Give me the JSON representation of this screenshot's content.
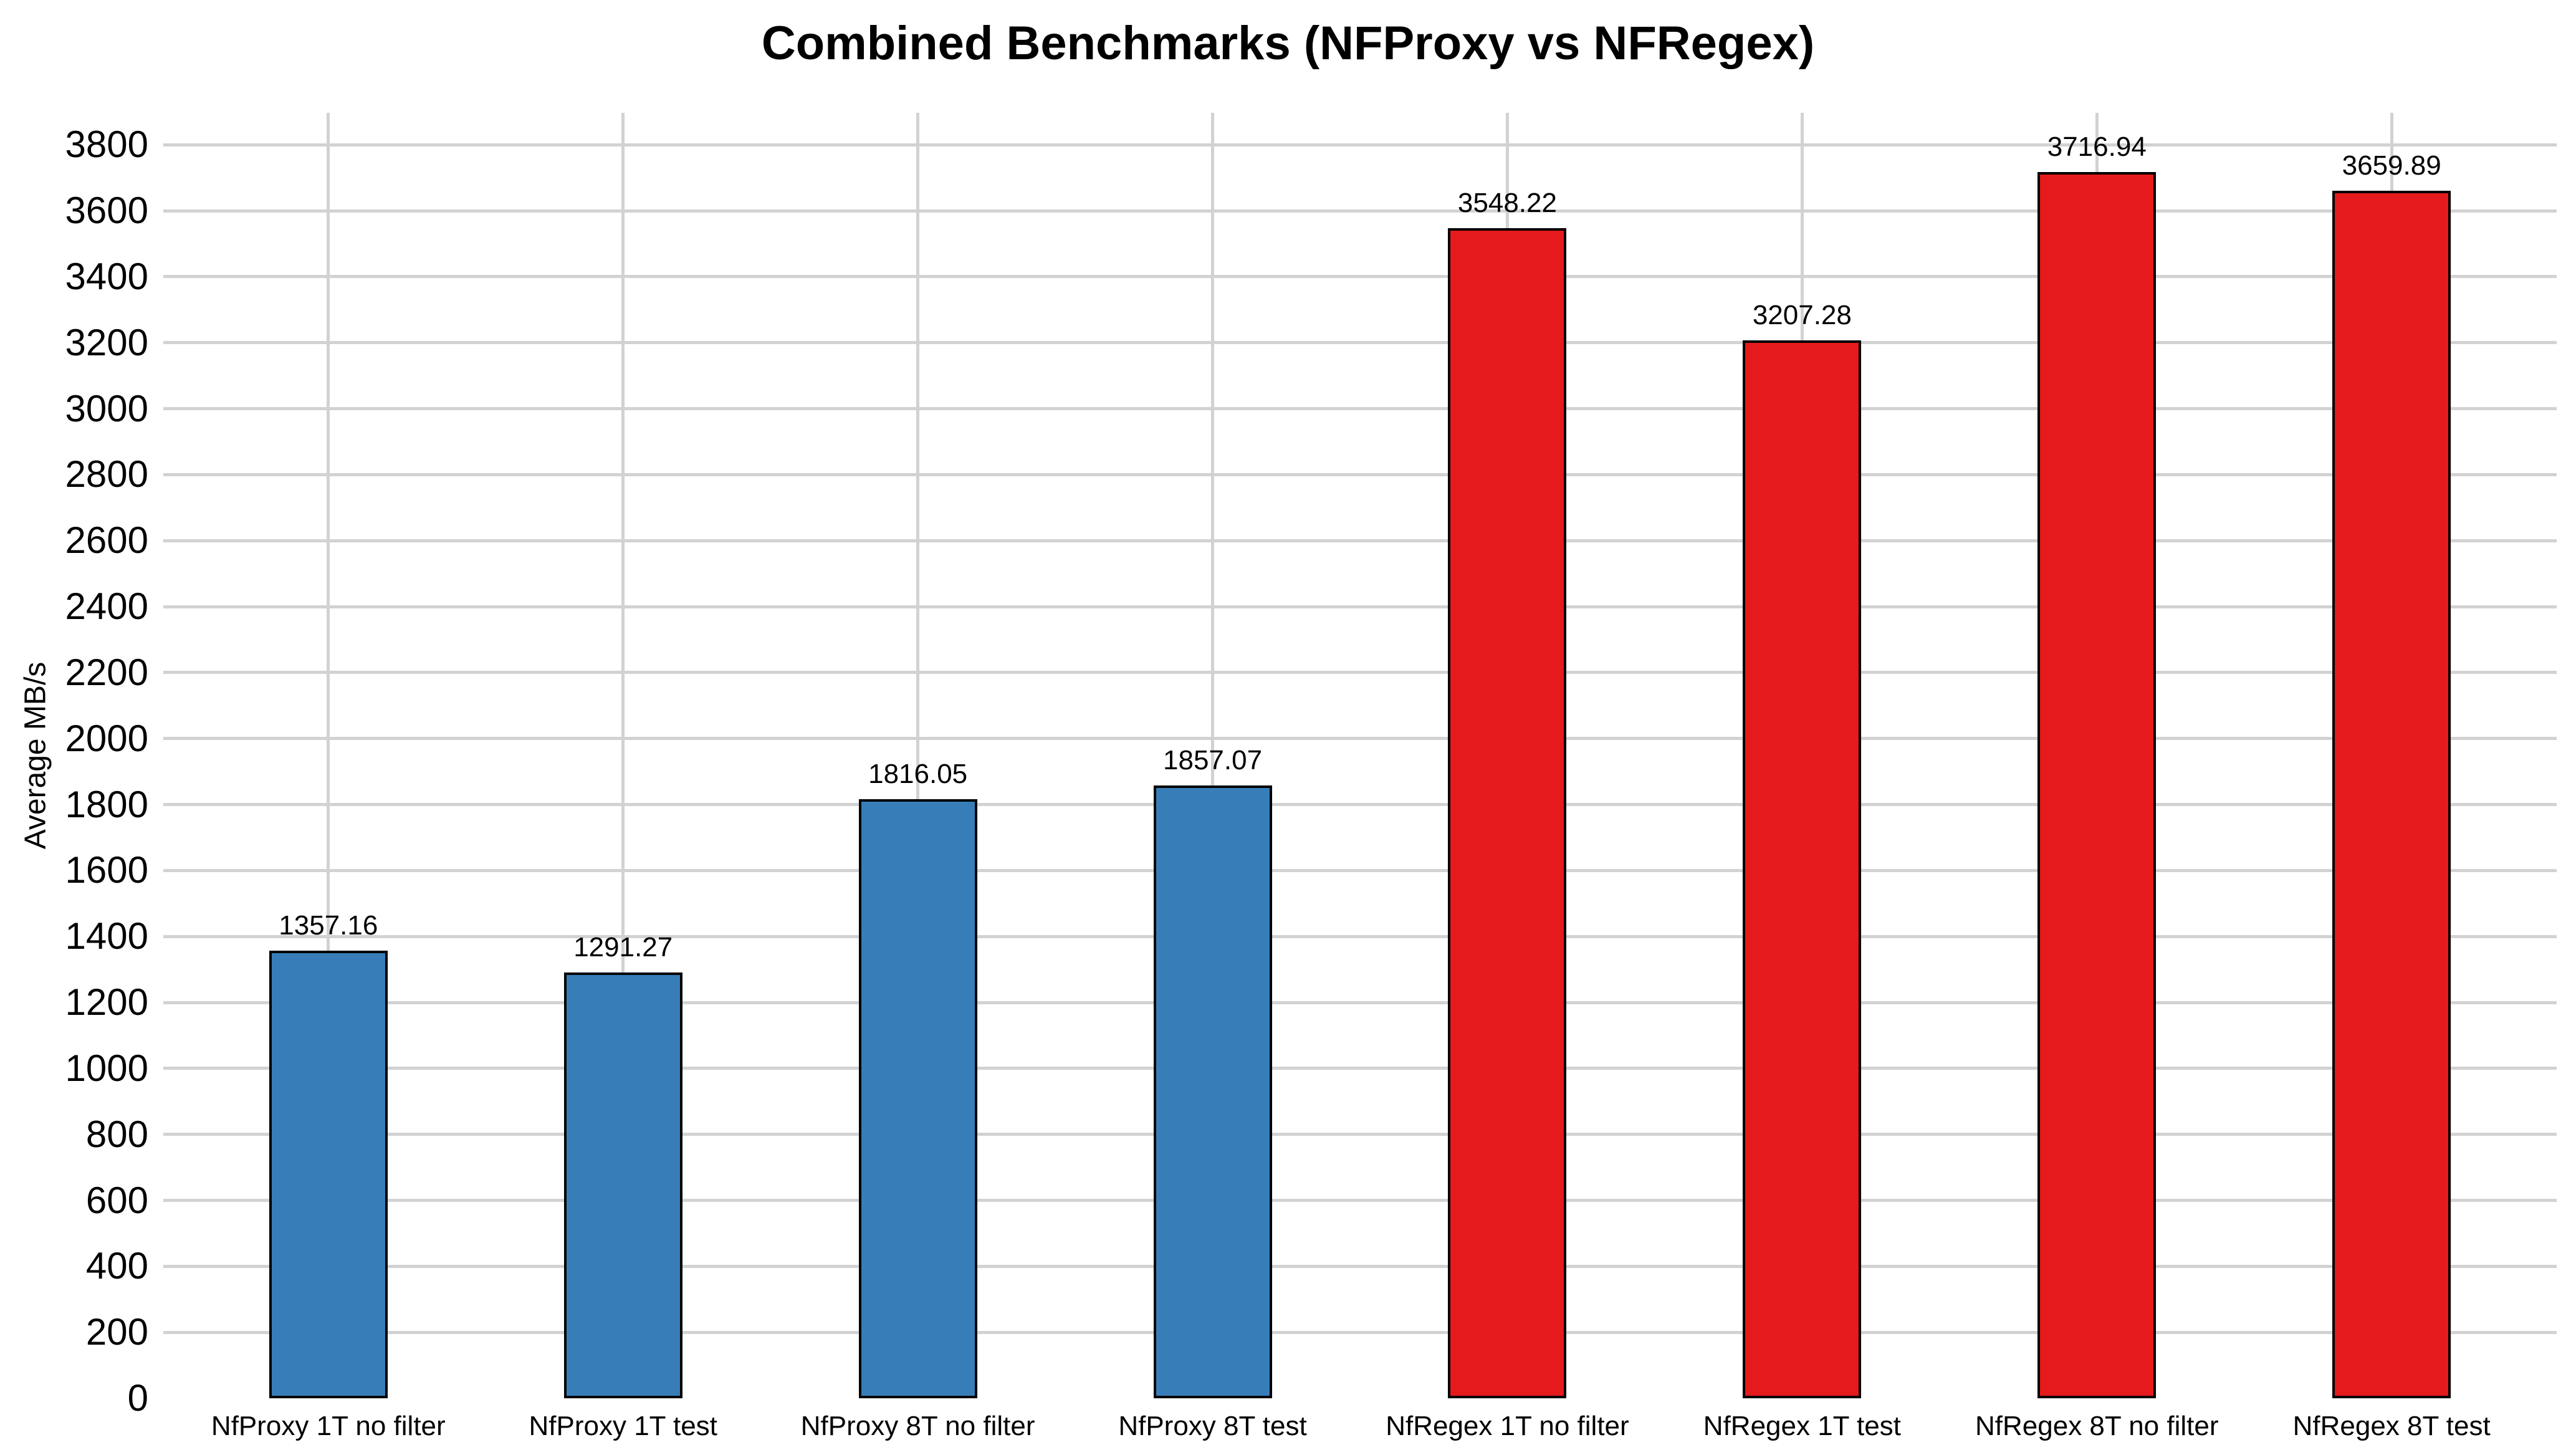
{
  "chart_data": {
    "type": "bar",
    "title": "Combined Benchmarks (NFProxy vs NFRegex)",
    "xlabel": "",
    "ylabel": "Average MB/s",
    "categories": [
      "NfProxy 1T no filter",
      "NfProxy 1T test",
      "NfProxy 8T no filter",
      "NfProxy 8T test",
      "NfRegex 1T no filter",
      "NfRegex 1T test",
      "NfRegex 8T no filter",
      "NfRegex 8T test"
    ],
    "values": [
      1357.16,
      1291.27,
      1816.05,
      1857.07,
      3548.22,
      3207.28,
      3716.94,
      3659.89
    ],
    "value_labels": [
      "1357.16",
      "1291.27",
      "1816.05",
      "1857.07",
      "3548.22",
      "3207.28",
      "3716.94",
      "3659.89"
    ],
    "bar_colors": [
      "#377eb8",
      "#377eb8",
      "#377eb8",
      "#377eb8",
      "#e41a1c",
      "#e41a1c",
      "#e41a1c",
      "#e41a1c"
    ],
    "y_ticks": [
      0,
      200,
      400,
      600,
      800,
      1000,
      1200,
      1400,
      1600,
      1800,
      2000,
      2200,
      2400,
      2600,
      2800,
      3000,
      3200,
      3400,
      3600,
      3800
    ],
    "ylim": [
      0,
      3897
    ],
    "grid": "both",
    "legend_position": "none",
    "series_colors": {
      "nfproxy_blue": "#377eb8",
      "nfregex_red": "#e41a1c",
      "gridline_gray": "#d2d2d2",
      "bar_outline": "#000000"
    }
  }
}
